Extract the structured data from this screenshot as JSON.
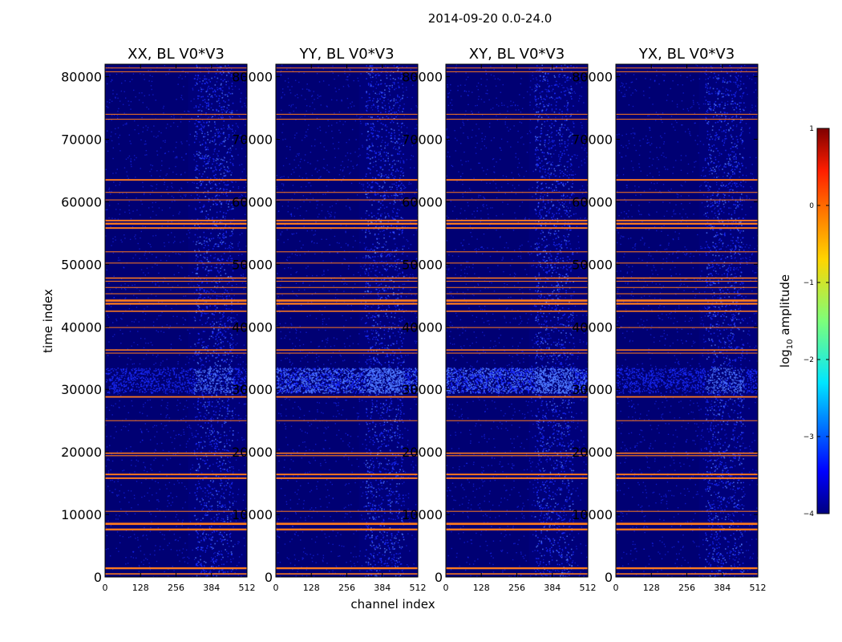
{
  "figure_title": "2014-09-20 0.0-24.0",
  "colors": {
    "background_navy": "#00007a",
    "background_dark": "#000066",
    "speckle": "#1a2cff",
    "speckle_bright": "#4f79ff",
    "flag_line": "#ff7a1e",
    "axis": "#000000"
  },
  "chart_data": {
    "type": "heatmap",
    "panels": [
      {
        "title": "XX, BL V0*V3",
        "bright_band": "weak"
      },
      {
        "title": "YY, BL V0*V3",
        "bright_band": "strong"
      },
      {
        "title": "XY, BL V0*V3",
        "bright_band": "strong"
      },
      {
        "title": "YX, BL V0*V3",
        "bright_band": "weak"
      }
    ],
    "xlabel": "channel index",
    "ylabel": "time index",
    "x_ticks": [
      0,
      128,
      256,
      384,
      512
    ],
    "x_tick_labels": [
      "0",
      "128",
      "256",
      "384",
      "512"
    ],
    "xlim": [
      0,
      512
    ],
    "y_ticks": [
      0,
      10000,
      20000,
      30000,
      40000,
      50000,
      60000,
      70000,
      80000
    ],
    "y_tick_labels": [
      "0",
      "10000",
      "20000",
      "30000",
      "40000",
      "50000",
      "60000",
      "70000",
      "80000"
    ],
    "ylim": [
      0,
      82000
    ],
    "bright_channel_range": [
      320,
      460
    ],
    "bright_time_range": [
      29500,
      33500
    ],
    "flagged_time_rows": [
      {
        "t": 500,
        "width": 200
      },
      {
        "t": 1400,
        "width": 300
      },
      {
        "t": 7600,
        "width": 300
      },
      {
        "t": 8500,
        "width": 350
      },
      {
        "t": 10500,
        "width": 130
      },
      {
        "t": 15800,
        "width": 250
      },
      {
        "t": 16400,
        "width": 250
      },
      {
        "t": 19400,
        "width": 150
      },
      {
        "t": 19800,
        "width": 200
      },
      {
        "t": 25000,
        "width": 130
      },
      {
        "t": 28800,
        "width": 230
      },
      {
        "t": 35800,
        "width": 130
      },
      {
        "t": 36300,
        "width": 200
      },
      {
        "t": 39900,
        "width": 120
      },
      {
        "t": 42500,
        "width": 200
      },
      {
        "t": 43700,
        "width": 300
      },
      {
        "t": 44200,
        "width": 350
      },
      {
        "t": 45300,
        "width": 120
      },
      {
        "t": 46300,
        "width": 120
      },
      {
        "t": 47300,
        "width": 130
      },
      {
        "t": 47800,
        "width": 200
      },
      {
        "t": 50200,
        "width": 130
      },
      {
        "t": 52000,
        "width": 130
      },
      {
        "t": 55800,
        "width": 250
      },
      {
        "t": 56500,
        "width": 300
      },
      {
        "t": 57000,
        "width": 250
      },
      {
        "t": 60300,
        "width": 130
      },
      {
        "t": 61500,
        "width": 130
      },
      {
        "t": 63500,
        "width": 250
      },
      {
        "t": 73200,
        "width": 130
      },
      {
        "t": 74000,
        "width": 120
      },
      {
        "t": 80800,
        "width": 130
      },
      {
        "t": 81400,
        "width": 120
      }
    ],
    "colorbar": {
      "label": "log",
      "label_subscript": "10",
      "label_suffix": " amplitude",
      "min": -4,
      "max": 1,
      "ticks": [
        1,
        0,
        -1,
        -2,
        -3,
        -4
      ],
      "tick_labels": [
        "1",
        "0",
        "−1",
        "−2",
        "−3",
        "−4"
      ],
      "colormap": "jet"
    }
  }
}
